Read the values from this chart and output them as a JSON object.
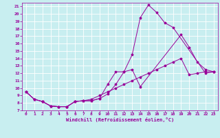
{
  "xlabel": "Windchill (Refroidissement éolien,°C)",
  "background_color": "#c8eef0",
  "line_color": "#990099",
  "grid_color": "#ffffff",
  "xlim": [
    -0.5,
    23.5
  ],
  "ylim": [
    7,
    21.5
  ],
  "xticks": [
    0,
    1,
    2,
    3,
    4,
    5,
    6,
    7,
    8,
    9,
    10,
    11,
    12,
    13,
    14,
    15,
    16,
    17,
    18,
    19,
    20,
    21,
    22,
    23
  ],
  "yticks": [
    7,
    8,
    9,
    10,
    11,
    12,
    13,
    14,
    15,
    16,
    17,
    18,
    19,
    20,
    21
  ],
  "line1_x": [
    0,
    1,
    2,
    3,
    4,
    5,
    6,
    7,
    8,
    9,
    10,
    11,
    12,
    13,
    14,
    15,
    16,
    17,
    18,
    22,
    23
  ],
  "line1_y": [
    9.5,
    8.5,
    8.2,
    7.6,
    7.5,
    7.5,
    8.2,
    8.3,
    8.3,
    8.6,
    10.5,
    12.2,
    12.2,
    14.5,
    19.5,
    21.2,
    20.2,
    18.8,
    18.2,
    12.0,
    12.2
  ],
  "line2_x": [
    0,
    1,
    2,
    3,
    4,
    5,
    6,
    7,
    8,
    9,
    10,
    11,
    12,
    13,
    14,
    19,
    20,
    21,
    22,
    23
  ],
  "line2_y": [
    9.5,
    8.5,
    8.2,
    7.6,
    7.5,
    7.5,
    8.2,
    8.3,
    8.3,
    8.6,
    9.2,
    10.5,
    12.2,
    12.5,
    10.2,
    17.2,
    15.5,
    13.5,
    12.5,
    12.2
  ],
  "line3_x": [
    0,
    1,
    2,
    3,
    4,
    5,
    6,
    7,
    8,
    9,
    10,
    11,
    12,
    13,
    14,
    15,
    16,
    17,
    18,
    19,
    20,
    21,
    22,
    23
  ],
  "line3_y": [
    9.5,
    8.5,
    8.2,
    7.6,
    7.5,
    7.5,
    8.2,
    8.3,
    8.5,
    9.0,
    9.5,
    10.0,
    10.5,
    11.0,
    11.5,
    12.0,
    12.5,
    13.0,
    13.5,
    14.0,
    11.8,
    12.0,
    12.2,
    12.2
  ]
}
